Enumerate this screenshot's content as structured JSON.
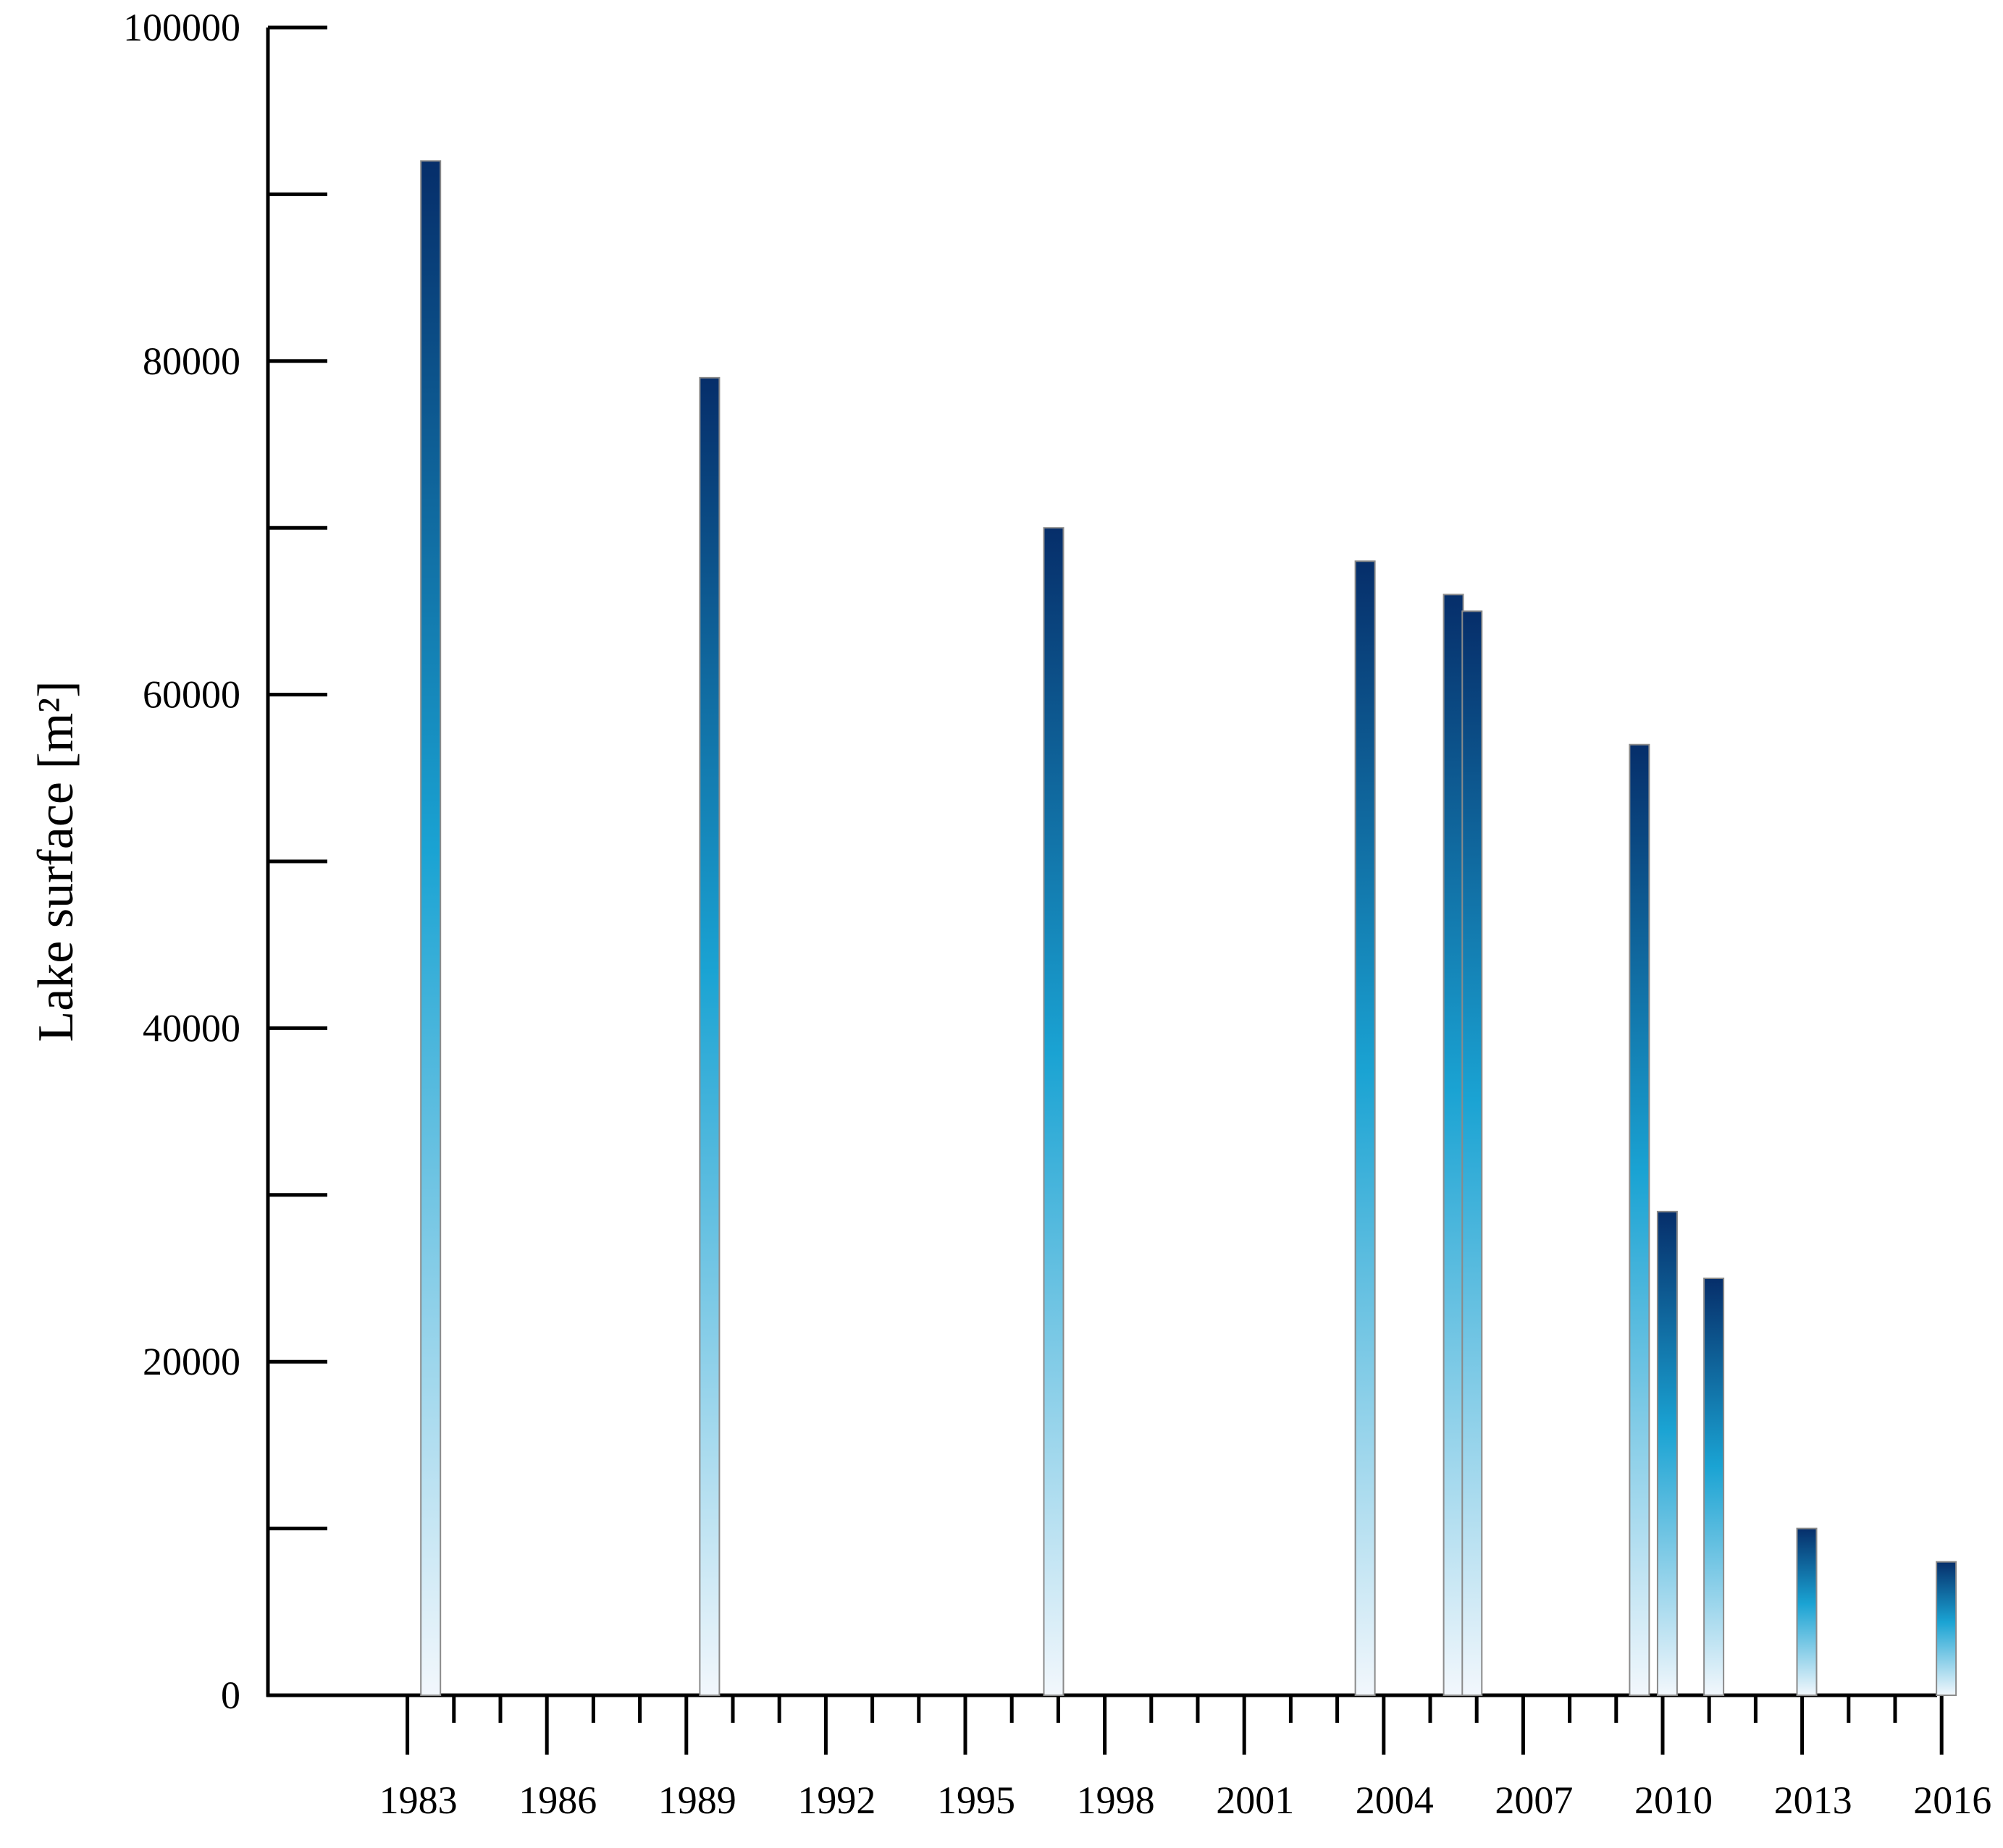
{
  "chart_data": {
    "type": "bar",
    "title": "",
    "xlabel": "",
    "ylabel": "Lake surface [m²]",
    "ylim": [
      0,
      100000
    ],
    "y_ticks": [
      "0",
      "20000",
      "40000",
      "60000",
      "80000",
      "100000"
    ],
    "x_range": [
      1980,
      2016
    ],
    "x_tick_labels": [
      "1983",
      "1986",
      "1989",
      "1992",
      "1995",
      "1998",
      "2001",
      "2004",
      "2007",
      "2010",
      "2013",
      "2016"
    ],
    "grid": false,
    "bar_gradient": [
      "#f2f7fc",
      "#1aa3d3",
      "#062e6a"
    ],
    "points": [
      {
        "x": 1983.5,
        "y": 92000
      },
      {
        "x": 1989.5,
        "y": 79000
      },
      {
        "x": 1996.9,
        "y": 70000
      },
      {
        "x": 2003.6,
        "y": 68000
      },
      {
        "x": 2005.5,
        "y": 66000
      },
      {
        "x": 2005.9,
        "y": 65000
      },
      {
        "x": 2009.5,
        "y": 57000
      },
      {
        "x": 2010.1,
        "y": 29000
      },
      {
        "x": 2011.1,
        "y": 25000
      },
      {
        "x": 2013.1,
        "y": 10000
      },
      {
        "x": 2016.1,
        "y": 8000
      }
    ]
  }
}
